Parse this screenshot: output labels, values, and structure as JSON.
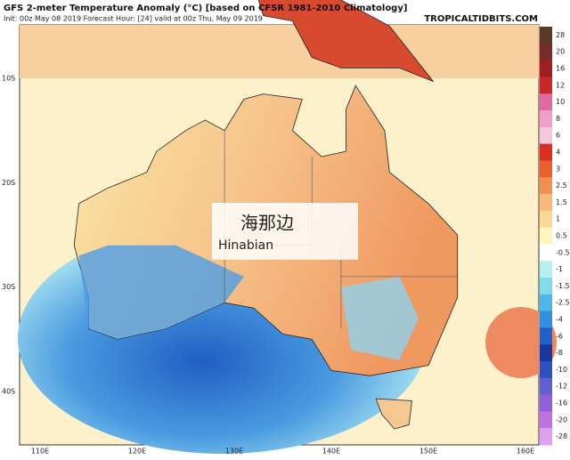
{
  "header": {
    "title": "GFS 2-meter Temperature Anomaly (°C) [based on CFSR 1981-2010 Climatology]",
    "subtitle": "Init: 00z May 08 2019   Forecast Hour: [24]   valid at 00z Thu, May 09 2019",
    "site": "TROPICALTIDBITS.COM"
  },
  "map": {
    "lat_labels": [
      "10S",
      "20S",
      "30S",
      "40S"
    ],
    "lon_labels": [
      "110E",
      "120E",
      "130E",
      "140E",
      "150E",
      "160E"
    ]
  },
  "colorbar": {
    "labels": [
      "28",
      "20",
      "16",
      "12",
      "10",
      "8",
      "6",
      "4",
      "3",
      "2.5",
      "1.5",
      "1",
      "0.5",
      "-0.5",
      "-1",
      "-1.5",
      "-2.5",
      "-4",
      "-6",
      "-8",
      "-10",
      "-12",
      "-16",
      "-20",
      "-28"
    ],
    "colors": [
      "#5a3a2a",
      "#7a2a2a",
      "#a02020",
      "#c82828",
      "#e06aa0",
      "#f0a0c8",
      "#f4c8dc",
      "#d83020",
      "#e86030",
      "#f29050",
      "#f8b878",
      "#fcd898",
      "#fff4c0",
      "#ffffff",
      "#b8f0f0",
      "#80dce8",
      "#50b8e8",
      "#3090e0",
      "#2060c8",
      "#1838a0",
      "#3050c0",
      "#6060d0",
      "#9060d8",
      "#c070e0",
      "#e0a0f0"
    ]
  },
  "watermark": {
    "chinese": "海那边",
    "latin": "Hinabian"
  }
}
